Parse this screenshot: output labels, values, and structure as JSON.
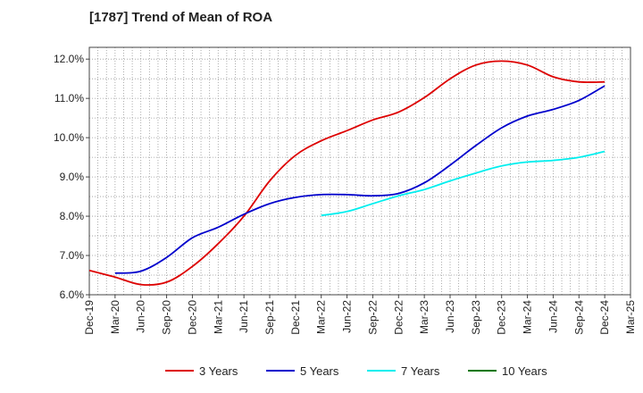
{
  "chart_data": {
    "type": "line",
    "title": "[1787]  Trend of Mean of ROA",
    "xlabel": "",
    "ylabel": "",
    "x": [
      "Dec-19",
      "Mar-20",
      "Jun-20",
      "Sep-20",
      "Dec-20",
      "Mar-21",
      "Jun-21",
      "Sep-21",
      "Dec-21",
      "Mar-22",
      "Jun-22",
      "Sep-22",
      "Dec-22",
      "Mar-23",
      "Jun-23",
      "Sep-23",
      "Dec-23",
      "Mar-24",
      "Jun-24",
      "Sep-24",
      "Dec-24",
      "Mar-25"
    ],
    "ylim": [
      6.0,
      12.3
    ],
    "yticks": [
      6.0,
      7.0,
      8.0,
      9.0,
      10.0,
      11.0,
      12.0
    ],
    "ytick_labels": [
      "6.0%",
      "7.0%",
      "8.0%",
      "9.0%",
      "10.0%",
      "11.0%",
      "12.0%"
    ],
    "grid": true,
    "legend_position": "bottom",
    "series": [
      {
        "name": "3 Years",
        "color": "#dd0000",
        "values": [
          6.62,
          6.45,
          6.26,
          6.32,
          6.72,
          7.3,
          8.0,
          8.9,
          9.55,
          9.92,
          10.18,
          10.45,
          10.65,
          11.02,
          11.5,
          11.85,
          11.95,
          11.85,
          11.55,
          11.42,
          11.42,
          null
        ]
      },
      {
        "name": "5 Years",
        "color": "#0000cc",
        "values": [
          null,
          6.55,
          6.6,
          6.95,
          7.45,
          7.72,
          8.05,
          8.32,
          8.48,
          8.55,
          8.55,
          8.52,
          8.58,
          8.85,
          9.3,
          9.8,
          10.25,
          10.55,
          10.72,
          10.95,
          11.32,
          null
        ]
      },
      {
        "name": "7 Years",
        "color": "#00eeee",
        "values": [
          null,
          null,
          null,
          null,
          null,
          null,
          null,
          null,
          null,
          8.02,
          8.12,
          8.32,
          8.52,
          8.68,
          8.9,
          9.1,
          9.28,
          9.38,
          9.42,
          9.5,
          9.65,
          null
        ]
      },
      {
        "name": "10 Years",
        "color": "#007700",
        "values": [
          null,
          null,
          null,
          null,
          null,
          null,
          null,
          null,
          null,
          null,
          null,
          null,
          null,
          null,
          null,
          null,
          null,
          null,
          null,
          null,
          null,
          null
        ]
      }
    ]
  }
}
